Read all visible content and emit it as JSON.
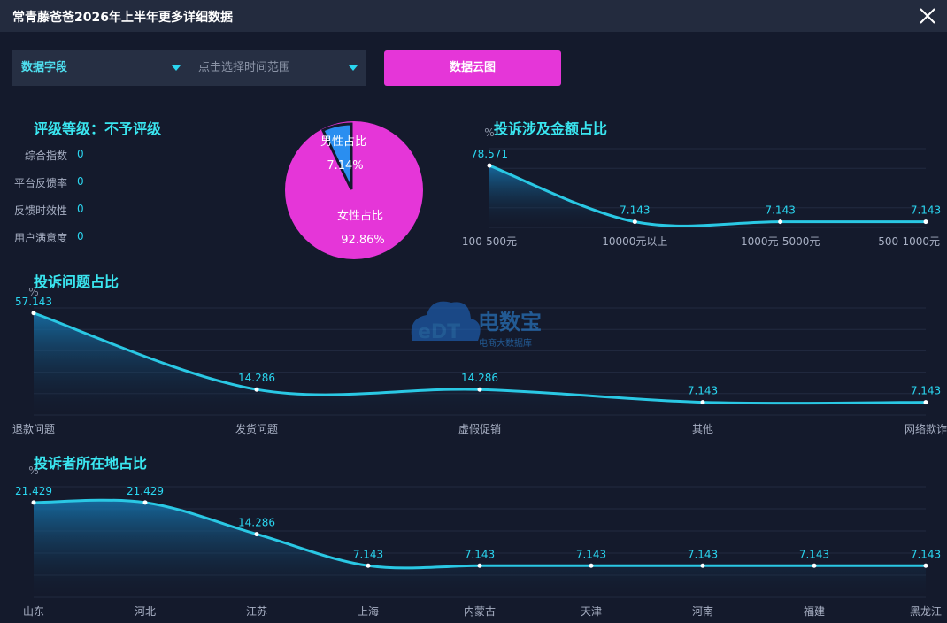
{
  "window": {
    "title": "常青藤爸爸2026年上半年更多详细数据"
  },
  "filters": {
    "field_label": "数据字段",
    "time_placeholder": "点击选择时间范围",
    "cloud_button": "数据云图"
  },
  "rating": {
    "title": "评级等级：不予评级",
    "metrics": [
      {
        "label": "综合指数",
        "value": "0"
      },
      {
        "label": "平台反馈率",
        "value": "0"
      },
      {
        "label": "反馈时效性",
        "value": "0"
      },
      {
        "label": "用户满意度",
        "value": "0"
      }
    ]
  },
  "watermark": {
    "brand": "电数宝",
    "tagline": "电商大数据库",
    "logo_text": "eDT"
  },
  "colors": {
    "accent": "#2ad6f0",
    "title": "#3ae6f0",
    "magenta": "#e536d8",
    "male": "#2a8ef0"
  },
  "chart_data": [
    {
      "type": "pie",
      "labels": [
        "男性占比",
        "女性占比"
      ],
      "values": [
        7.14,
        92.86
      ],
      "value_labels": [
        "7.14%",
        "92.86%"
      ],
      "colors": [
        "#2a8ef0",
        "#e536d8"
      ]
    },
    {
      "type": "area",
      "title": "投诉涉及金额占比",
      "ylabel": "%",
      "categories": [
        "100-500元",
        "10000元以上",
        "1000元-5000元",
        "500-1000元"
      ],
      "values": [
        78.571,
        7.143,
        7.143,
        7.143
      ],
      "value_labels": [
        "78.571",
        "7.143",
        "7.143",
        "7.143"
      ],
      "ylim": [
        0,
        100
      ]
    },
    {
      "type": "area",
      "title": "投诉问题占比",
      "ylabel": "%",
      "categories": [
        "退款问题",
        "发货问题",
        "虚假促销",
        "其他",
        "网络欺诈"
      ],
      "values": [
        57.143,
        14.286,
        14.286,
        7.143,
        7.143
      ],
      "value_labels": [
        "57.143",
        "14.286",
        "14.286",
        "7.143",
        "7.143"
      ],
      "ylim": [
        0,
        60
      ]
    },
    {
      "type": "area",
      "title": "投诉者所在地占比",
      "ylabel": "%",
      "categories": [
        "山东",
        "河北",
        "江苏",
        "上海",
        "内蒙古",
        "天津",
        "河南",
        "福建",
        "黑龙江"
      ],
      "values": [
        21.429,
        21.429,
        14.286,
        7.143,
        7.143,
        7.143,
        7.143,
        7.143,
        7.143
      ],
      "value_labels": [
        "21.429",
        "21.429",
        "14.286",
        "7.143",
        "7.143",
        "7.143",
        "7.143",
        "7.143",
        "7.143"
      ],
      "ylim": [
        0,
        25
      ]
    }
  ]
}
